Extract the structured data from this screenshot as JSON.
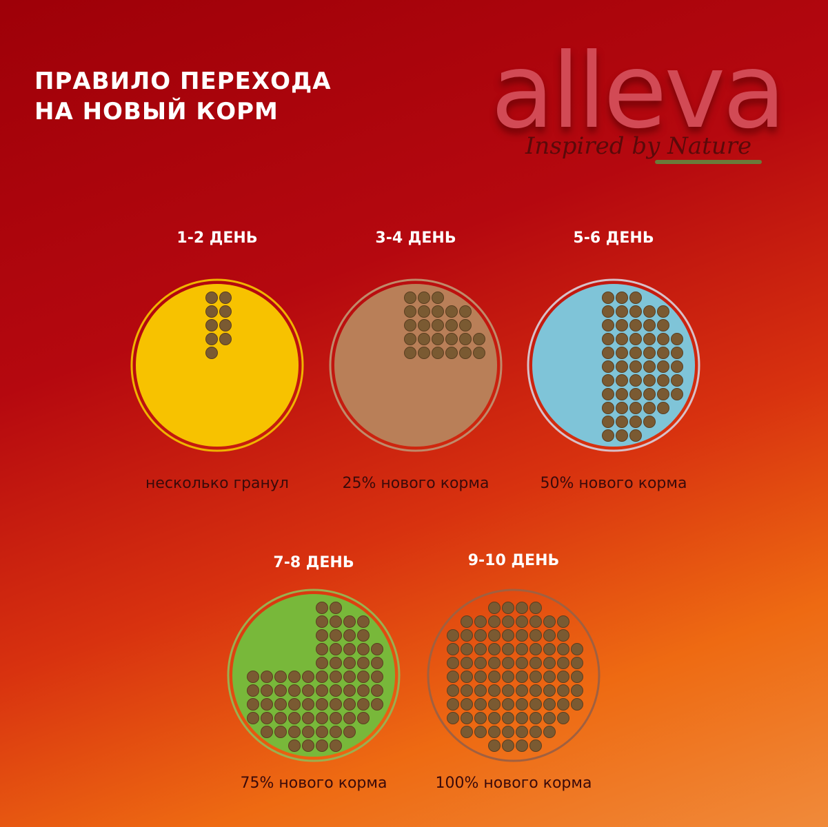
{
  "header": {
    "title": [
      "ПРАВИЛО ПЕРЕХОДА",
      "НА НОВЫЙ КОРМ"
    ],
    "logo": "alleva",
    "tagline": "Inspired by Nature"
  },
  "steps": [
    {
      "day": "1-2 ДЕНЬ",
      "caption": "несколько гранул"
    },
    {
      "day": "3-4 ДЕНЬ",
      "caption": "25% нового корма"
    },
    {
      "day": "5-6 ДЕНЬ",
      "caption": "50% нового корма"
    },
    {
      "day": "7-8 ДЕНЬ",
      "caption": "75% нового корма"
    },
    {
      "day": "9-10 ДЕНЬ",
      "caption": "100% нового корма"
    }
  ]
}
